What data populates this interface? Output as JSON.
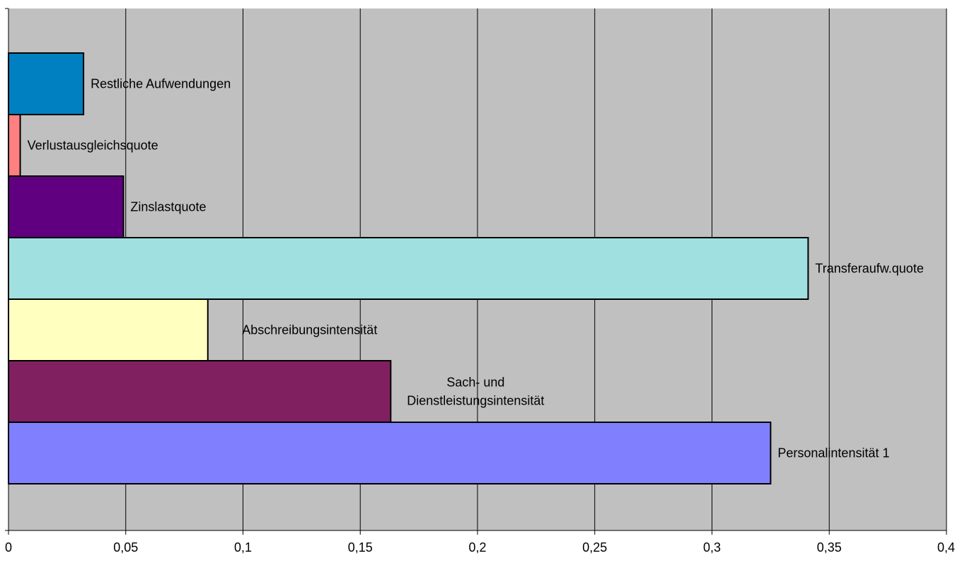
{
  "chart_data": {
    "type": "bar",
    "orientation": "horizontal",
    "categories": [
      "Restliche Aufwendungen",
      "Verlustausgleichsquote",
      "Zinslastquote",
      "Transferaufw.quote",
      "Abschreibungsintensität",
      "Sach- und Dienstleistungsintensität",
      "Personalintensität 1"
    ],
    "label_lines": [
      [
        "Restliche Aufwendungen"
      ],
      [
        "Verlustausgleichsquote"
      ],
      [
        "Zinslastquote"
      ],
      [
        "Transferaufw.quote"
      ],
      [
        "Abschreibungsintensität"
      ],
      [
        "Sach- und",
        "Dienstleistungsintensität"
      ],
      [
        "Personalintensität 1"
      ]
    ],
    "values": [
      0.032,
      0.005,
      0.049,
      0.341,
      0.085,
      0.163,
      0.325
    ],
    "colors": [
      "#0080c0",
      "#ff8080",
      "#600080",
      "#a0e0e0",
      "#ffffc0",
      "#802060",
      "#8080ff"
    ],
    "x_ticks": [
      "0",
      "0,05",
      "0,1",
      "0,15",
      "0,2",
      "0,25",
      "0,3",
      "0,35",
      "0,4"
    ],
    "xlim": [
      0,
      0.4
    ],
    "title": "",
    "xlabel": "",
    "ylabel": "",
    "grid": "vertical",
    "legend": "none",
    "plot_background": "#c0c0c0"
  }
}
